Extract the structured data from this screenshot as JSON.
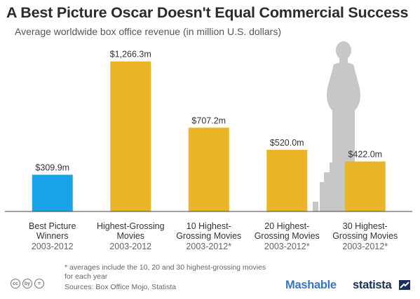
{
  "title": "A Best Picture Oscar Doesn't Equal Commercial Success",
  "subtitle": "Average worldwide box office revenue (in million U.S. dollars)",
  "chart_data": {
    "type": "bar",
    "categories": [
      {
        "line1": "Best Picture",
        "line2": "Winners",
        "period": "2003-2012"
      },
      {
        "line1": "Highest-Grossing",
        "line2": "Movies",
        "period": "2003-2012"
      },
      {
        "line1": "10 Highest-",
        "line2": "Grossing Movies",
        "period": "2003-2012*"
      },
      {
        "line1": "20 Highest-",
        "line2": "Grossing Movies",
        "period": "2003-2012*"
      },
      {
        "line1": "30 Highest-",
        "line2": "Grossing Movies",
        "period": "2003-2012*"
      }
    ],
    "values": [
      309.9,
      1266.3,
      707.2,
      520.0,
      422.0
    ],
    "value_labels": [
      "$309.9m",
      "$1,266.3m",
      "$707.2m",
      "$520.0m",
      "$422.0m"
    ],
    "bar_colors": [
      "#1aa3e8",
      "#ebb52a",
      "#ebb52a",
      "#ebb52a",
      "#ebb52a"
    ],
    "ylim": [
      0,
      1300
    ],
    "grid": false
  },
  "footnote": "* averages include the 10, 20 and 30 highest-grossing movies for each year",
  "sources": "Sources: Box Office Mojo, Statista",
  "license_icons": [
    "cc",
    "by",
    "="
  ],
  "brands": {
    "mashable": "Mashable",
    "statista": "statista"
  },
  "colors": {
    "background": "#ffffff",
    "oscar_statue": "#c7c7c7",
    "axis": "#444444"
  }
}
